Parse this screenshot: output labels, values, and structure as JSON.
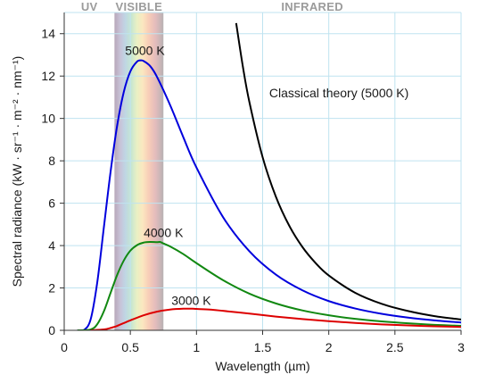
{
  "chart_data": {
    "type": "line",
    "title": "",
    "xlabel": "Wavelength (µm)",
    "ylabel": "Spectral radiance (kW · sr⁻¹ · m⁻² · nm⁻¹)",
    "xlim": [
      0,
      3
    ],
    "ylim": [
      0,
      15
    ],
    "x_ticks": [
      "0",
      "0.5",
      "1",
      "1.5",
      "2",
      "2.5",
      "3"
    ],
    "y_ticks": [
      "0",
      "2",
      "4",
      "6",
      "8",
      "10",
      "12",
      "14"
    ],
    "grid": true,
    "legend": "none",
    "regions": [
      {
        "label": "UV",
        "x_range": [
          0,
          0.38
        ]
      },
      {
        "label": "VISIBLE",
        "x_range": [
          0.38,
          0.75
        ]
      },
      {
        "label": "INFRARED",
        "x_range": [
          0.75,
          3
        ]
      }
    ],
    "series": [
      {
        "name": "5000 K",
        "color": "#0000dd",
        "x": [
          0.1,
          0.15,
          0.2,
          0.25,
          0.3,
          0.35,
          0.4,
          0.45,
          0.5,
          0.55,
          0.58,
          0.6,
          0.65,
          0.7,
          0.8,
          0.9,
          1.0,
          1.2,
          1.4,
          1.6,
          1.8,
          2.0,
          2.2,
          2.4,
          2.6,
          2.8,
          3.0
        ],
        "y": [
          0.0,
          0.02,
          0.52,
          2.27,
          4.87,
          7.46,
          9.65,
          11.24,
          12.22,
          12.68,
          12.74,
          12.71,
          12.47,
          11.98,
          10.64,
          9.12,
          7.68,
          5.35,
          3.73,
          2.63,
          1.89,
          1.38,
          1.03,
          0.78,
          0.6,
          0.47,
          0.37
        ]
      },
      {
        "name": "4000 K",
        "color": "#118811",
        "x": [
          0.1,
          0.2,
          0.25,
          0.3,
          0.35,
          0.4,
          0.45,
          0.5,
          0.55,
          0.6,
          0.65,
          0.7,
          0.725,
          0.75,
          0.8,
          0.9,
          1.0,
          1.2,
          1.4,
          1.6,
          1.8,
          2.0,
          2.2,
          2.4,
          2.6,
          2.8,
          3.0
        ],
        "y": [
          0.0,
          0.04,
          0.29,
          0.9,
          1.76,
          2.61,
          3.29,
          3.76,
          4.02,
          4.14,
          4.17,
          4.16,
          4.17,
          4.1,
          3.96,
          3.6,
          3.17,
          2.37,
          1.73,
          1.27,
          0.94,
          0.71,
          0.54,
          0.42,
          0.33,
          0.26,
          0.21
        ]
      },
      {
        "name": "3000 K",
        "color": "#dd0000",
        "x": [
          0.2,
          0.3,
          0.35,
          0.4,
          0.45,
          0.5,
          0.6,
          0.7,
          0.8,
          0.9,
          0.97,
          1.0,
          1.1,
          1.2,
          1.4,
          1.6,
          1.8,
          2.0,
          2.2,
          2.4,
          2.6,
          2.8,
          3.0
        ],
        "y": [
          0.0,
          0.04,
          0.11,
          0.21,
          0.34,
          0.47,
          0.71,
          0.88,
          0.98,
          1.02,
          1.02,
          1.01,
          0.98,
          0.92,
          0.79,
          0.65,
          0.53,
          0.43,
          0.35,
          0.28,
          0.23,
          0.19,
          0.16
        ]
      },
      {
        "name": "Classical theory (5000 K)",
        "color": "#000000",
        "x": [
          1.3,
          1.35,
          1.4,
          1.5,
          1.6,
          1.7,
          1.8,
          1.9,
          2.0,
          2.2,
          2.4,
          2.6,
          2.8,
          3.0
        ],
        "y": [
          14.5,
          12.47,
          10.77,
          8.17,
          6.31,
          4.95,
          3.94,
          3.18,
          2.59,
          1.77,
          1.25,
          0.91,
          0.67,
          0.51
        ]
      }
    ],
    "annotations": [
      {
        "text": "5000 K",
        "x": 0.61,
        "y": 13.0
      },
      {
        "text": "4000 K",
        "x": 0.75,
        "y": 4.4
      },
      {
        "text": "3000 K",
        "x": 0.96,
        "y": 1.2
      },
      {
        "text": "Classical theory (5000 K)",
        "x": 1.55,
        "y": 11.0
      }
    ]
  }
}
